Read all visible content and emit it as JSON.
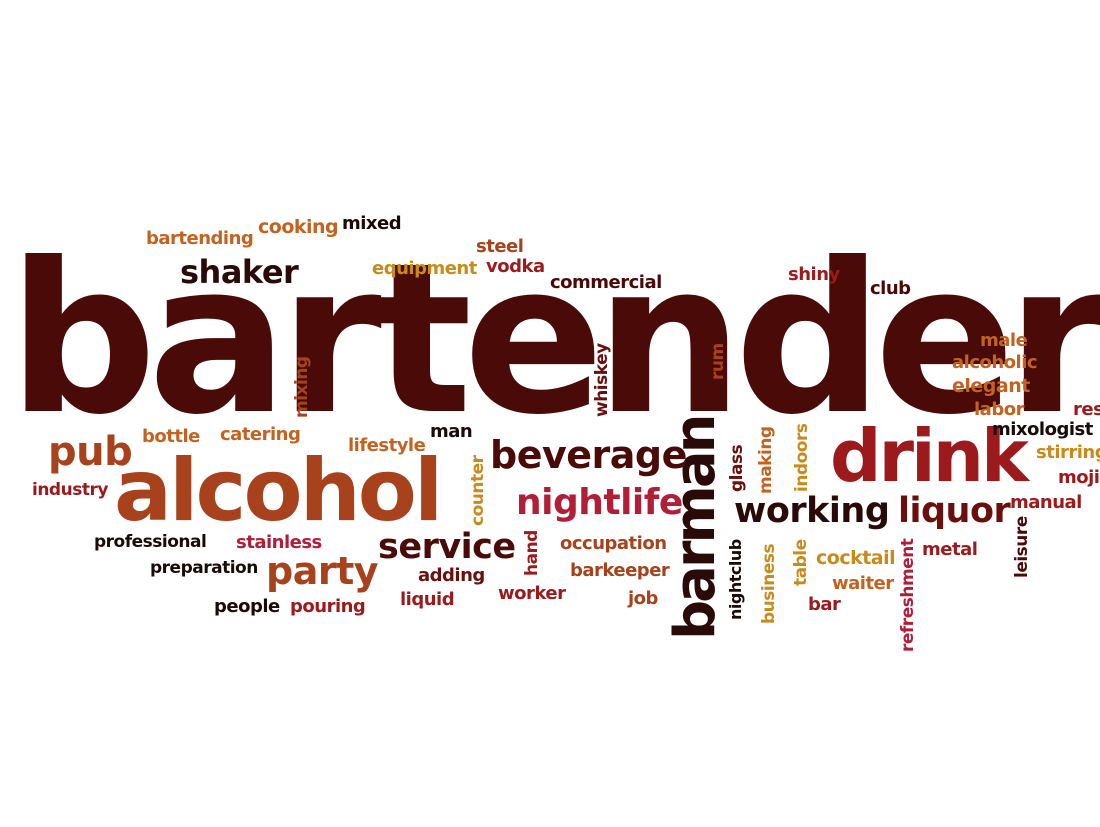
{
  "colors": {
    "darkbrown": "#4a0a08",
    "maroon": "#6b0f0c",
    "red": "#9c1a1c",
    "burnt": "#a8421c",
    "orange": "#c4621f",
    "gold": "#c98a1a",
    "crimson": "#b01e38",
    "black": "#1a0a08"
  },
  "words": {
    "bartender": "bartender",
    "alcohol": "alcohol",
    "drink": "drink",
    "barman": "barman",
    "beverage": "beverage",
    "pub": "pub",
    "nightlife": "nightlife",
    "service": "service",
    "working": "working",
    "liquor": "liquor",
    "party": "party",
    "shaker": "shaker",
    "bartending": "bartending",
    "cooking": "cooking",
    "mixed": "mixed",
    "steel": "steel",
    "equipment": "equipment",
    "vodka": "vodka",
    "commercial": "commercial",
    "shiny": "shiny",
    "club": "club",
    "male": "male",
    "alcoholic": "alcoholic",
    "elegant": "elegant",
    "labor": "labor",
    "res": "res",
    "mixologist": "mixologist",
    "stirring": "stirring",
    "mojito": "moji",
    "manual": "manual",
    "metal": "metal",
    "leisure": "leisure",
    "refreshment": "refreshment",
    "cocktail": "cocktail",
    "waiter": "waiter",
    "bar": "bar",
    "table": "table",
    "business": "business",
    "indoors": "indoors",
    "making": "making",
    "glass": "glass",
    "nightclub": "nightclub",
    "rum": "rum",
    "whiskey": "whiskey",
    "mixing": "mixing",
    "bottle": "bottle",
    "catering": "catering",
    "lifestyle": "lifestyle",
    "man": "man",
    "industry": "industry",
    "professional": "professional",
    "stainless": "stainless",
    "preparation": "preparation",
    "people": "people",
    "pouring": "pouring",
    "adding": "adding",
    "liquid": "liquid",
    "counter": "counter",
    "hand": "hand",
    "occupation": "occupation",
    "barkeeper": "barkeeper",
    "worker": "worker",
    "job": "job"
  }
}
